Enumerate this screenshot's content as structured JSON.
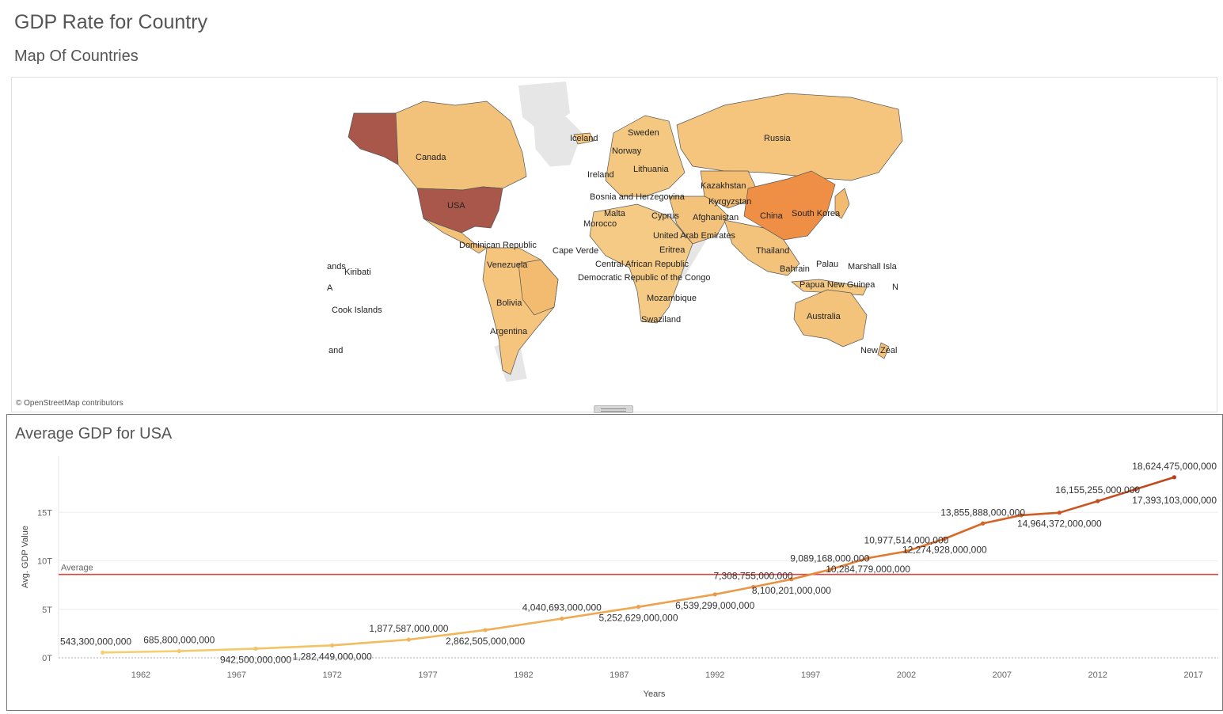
{
  "dashboard": {
    "title": "GDP Rate for Country"
  },
  "map": {
    "title": "Map Of Countries",
    "credit": "© OpenStreetMap contributors",
    "labels": [
      {
        "name": "Canada",
        "color": "#f3c27a"
      },
      {
        "name": "USA",
        "color": "#a9574a"
      },
      {
        "name": "Russia",
        "color": "#f5c57e"
      },
      {
        "name": "China",
        "color": "#ef8f45"
      },
      {
        "name": "Australia",
        "color": "#f4c37b"
      },
      {
        "name": "Iceland"
      },
      {
        "name": "Sweden"
      },
      {
        "name": "Norway"
      },
      {
        "name": "Lithuania"
      },
      {
        "name": "Ireland"
      },
      {
        "name": "Kazakhstan"
      },
      {
        "name": "Bosnia and Herzegovina"
      },
      {
        "name": "Kyrgyzstan"
      },
      {
        "name": "South Korea"
      },
      {
        "name": "Malta"
      },
      {
        "name": "Cyprus"
      },
      {
        "name": "Afghanistan"
      },
      {
        "name": "Morocco"
      },
      {
        "name": "United Arab Emirates"
      },
      {
        "name": "Dominican Republic"
      },
      {
        "name": "Cape Verde"
      },
      {
        "name": "Eritrea"
      },
      {
        "name": "Thailand"
      },
      {
        "name": "Venezuela"
      },
      {
        "name": "Central African Republic"
      },
      {
        "name": "Palau"
      },
      {
        "name": "Marshall Isla"
      },
      {
        "name": "Kiribati"
      },
      {
        "name": "ands"
      },
      {
        "name": "Bahrain"
      },
      {
        "name": "Democratic Republic of the Congo"
      },
      {
        "name": "A"
      },
      {
        "name": "Papua New Guinea"
      },
      {
        "name": "N"
      },
      {
        "name": "Mozambique"
      },
      {
        "name": "Bolivia"
      },
      {
        "name": "Cook Islands"
      },
      {
        "name": "Swaziland"
      },
      {
        "name": "Argentina"
      },
      {
        "name": "and"
      },
      {
        "name": "New Zeal"
      }
    ]
  },
  "chart": {
    "title": "Average GDP for USA",
    "reference_label": "Average"
  },
  "chart_data": {
    "type": "line",
    "title": "Average GDP for USA",
    "xlabel": "Years",
    "ylabel": "Avg. GDP Value",
    "xlim": [
      1957.7,
      2018.3
    ],
    "ylim": [
      0,
      20000000000000
    ],
    "x_ticks": [
      "1962",
      "1967",
      "1972",
      "1977",
      "1982",
      "1987",
      "1992",
      "1997",
      "2002",
      "2007",
      "2012",
      "2017"
    ],
    "y_ticks": [
      "0T",
      "5T",
      "10T",
      "15T"
    ],
    "y_tick_values": [
      0,
      5000000000000,
      10000000000000,
      15000000000000
    ],
    "reference_line": {
      "label": "Average",
      "value": 8600000000000,
      "color": "#d9453f"
    },
    "color_ramp": [
      "#f4d06f",
      "#efa44f",
      "#dd6e2c",
      "#b8401c"
    ],
    "grid": "horizontal",
    "series": [
      {
        "x": [
          1960,
          1964,
          1968,
          1972,
          1976,
          1980,
          1984,
          1988,
          1992,
          1994,
          1996,
          1998,
          2000,
          2002,
          2004,
          2006,
          2008,
          2010,
          2012,
          2014,
          2016
        ],
        "y": [
          543300000000,
          685800000000,
          942500000000,
          1282449000000,
          1877587000000,
          2862505000000,
          4040693000000,
          5252629000000,
          6539299000000,
          7308755000000,
          8100201000000,
          9089168000000,
          10284779000000,
          10977514000000,
          12274928000000,
          13855888000000,
          14700000000000,
          14964372000000,
          16155255000000,
          17393103000000,
          18624475000000
        ],
        "point_labels": [
          {
            "i": 0,
            "text": "543,300,000,000",
            "pos": "above"
          },
          {
            "i": 1,
            "text": "685,800,000,000",
            "pos": "above"
          },
          {
            "i": 2,
            "text": "942,500,000,000",
            "pos": "below"
          },
          {
            "i": 3,
            "text": "1,282,449,000,000",
            "pos": "below"
          },
          {
            "i": 4,
            "text": "1,877,587,000,000",
            "pos": "above"
          },
          {
            "i": 5,
            "text": "2,862,505,000,000",
            "pos": "below"
          },
          {
            "i": 6,
            "text": "4,040,693,000,000",
            "pos": "above"
          },
          {
            "i": 7,
            "text": "5,252,629,000,000",
            "pos": "below"
          },
          {
            "i": 8,
            "text": "6,539,299,000,000",
            "pos": "below"
          },
          {
            "i": 9,
            "text": "7,308,755,000,000",
            "pos": "above"
          },
          {
            "i": 10,
            "text": "8,100,201,000,000",
            "pos": "below"
          },
          {
            "i": 11,
            "text": "9,089,168,000,000",
            "pos": "above"
          },
          {
            "i": 12,
            "text": "10,284,779,000,000",
            "pos": "below"
          },
          {
            "i": 13,
            "text": "10,977,514,000,000",
            "pos": "above"
          },
          {
            "i": 14,
            "text": "12,274,928,000,000",
            "pos": "below"
          },
          {
            "i": 15,
            "text": "13,855,888,000,000",
            "pos": "above"
          },
          {
            "i": 17,
            "text": "14,964,372,000,000",
            "pos": "below"
          },
          {
            "i": 18,
            "text": "16,155,255,000,000",
            "pos": "above"
          },
          {
            "i": 19,
            "text": "17,393,103,000,000",
            "pos": "below"
          },
          {
            "i": 20,
            "text": "18,624,475,000,000",
            "pos": "above"
          }
        ]
      }
    ]
  }
}
